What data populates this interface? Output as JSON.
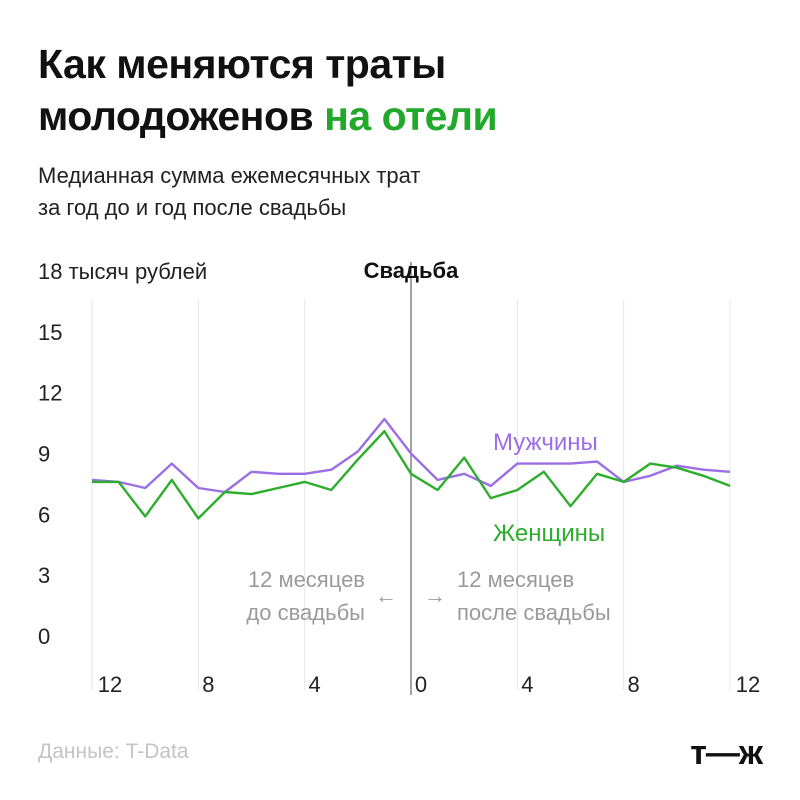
{
  "header": {
    "title_line1": "Как меняются траты",
    "title_line2": "молодоженов",
    "title_accent": "на отели",
    "subtitle_line1": "Медианная сумма ежемесячных трат",
    "subtitle_line2": "за год до и год после свадьбы"
  },
  "footer": {
    "source": "Данные: T-Data",
    "logo": "т—ж"
  },
  "colors": {
    "accent": "#22a82a",
    "men": "#9b6ee6",
    "women": "#2cad2c",
    "grid": "#e6e6e6",
    "annotation": "#9a9a9a"
  },
  "chart_data": {
    "type": "line",
    "x": [
      -12,
      -11,
      -10,
      -9,
      -8,
      -7,
      -6,
      -5,
      -4,
      -3,
      -2,
      -1,
      0,
      1,
      2,
      3,
      4,
      5,
      6,
      7,
      8,
      9,
      10,
      11,
      12
    ],
    "x_tick_values": [
      -12,
      -8,
      -4,
      0,
      4,
      8,
      12
    ],
    "x_tick_labels": [
      "12",
      "8",
      "4",
      "0",
      "4",
      "8",
      "12"
    ],
    "y_ticks": [
      0,
      3,
      6,
      9,
      12,
      15
    ],
    "y_top_label": "18 тысяч рублей",
    "ylim": [
      0,
      18
    ],
    "xlim": [
      -12,
      12
    ],
    "grid": "vertical",
    "marker": {
      "x": 0,
      "label": "Свадьба"
    },
    "series": [
      {
        "name": "Мужчины",
        "color": "#9b6ee6",
        "values": [
          7.7,
          7.6,
          7.3,
          8.5,
          7.3,
          7.1,
          8.1,
          8.0,
          8.0,
          8.2,
          9.1,
          10.7,
          9.0,
          7.7,
          8.0,
          7.4,
          8.5,
          8.5,
          8.5,
          8.6,
          7.6,
          7.9,
          8.4,
          8.2,
          8.1
        ]
      },
      {
        "name": "Женщины",
        "color": "#2cad2c",
        "values": [
          7.6,
          7.6,
          5.9,
          7.7,
          5.8,
          7.1,
          7.0,
          7.3,
          7.6,
          7.2,
          8.7,
          10.1,
          8.0,
          7.2,
          8.8,
          6.8,
          7.2,
          8.1,
          6.4,
          8.0,
          7.6,
          8.5,
          8.3,
          7.9,
          7.4
        ]
      }
    ],
    "annotations": {
      "before_line1": "12 месяцев",
      "before_line2": "до свадьбы",
      "before_arrow": "←",
      "after_line1": "12 месяцев",
      "after_line2": "после свадьбы",
      "after_arrow": "→"
    }
  }
}
